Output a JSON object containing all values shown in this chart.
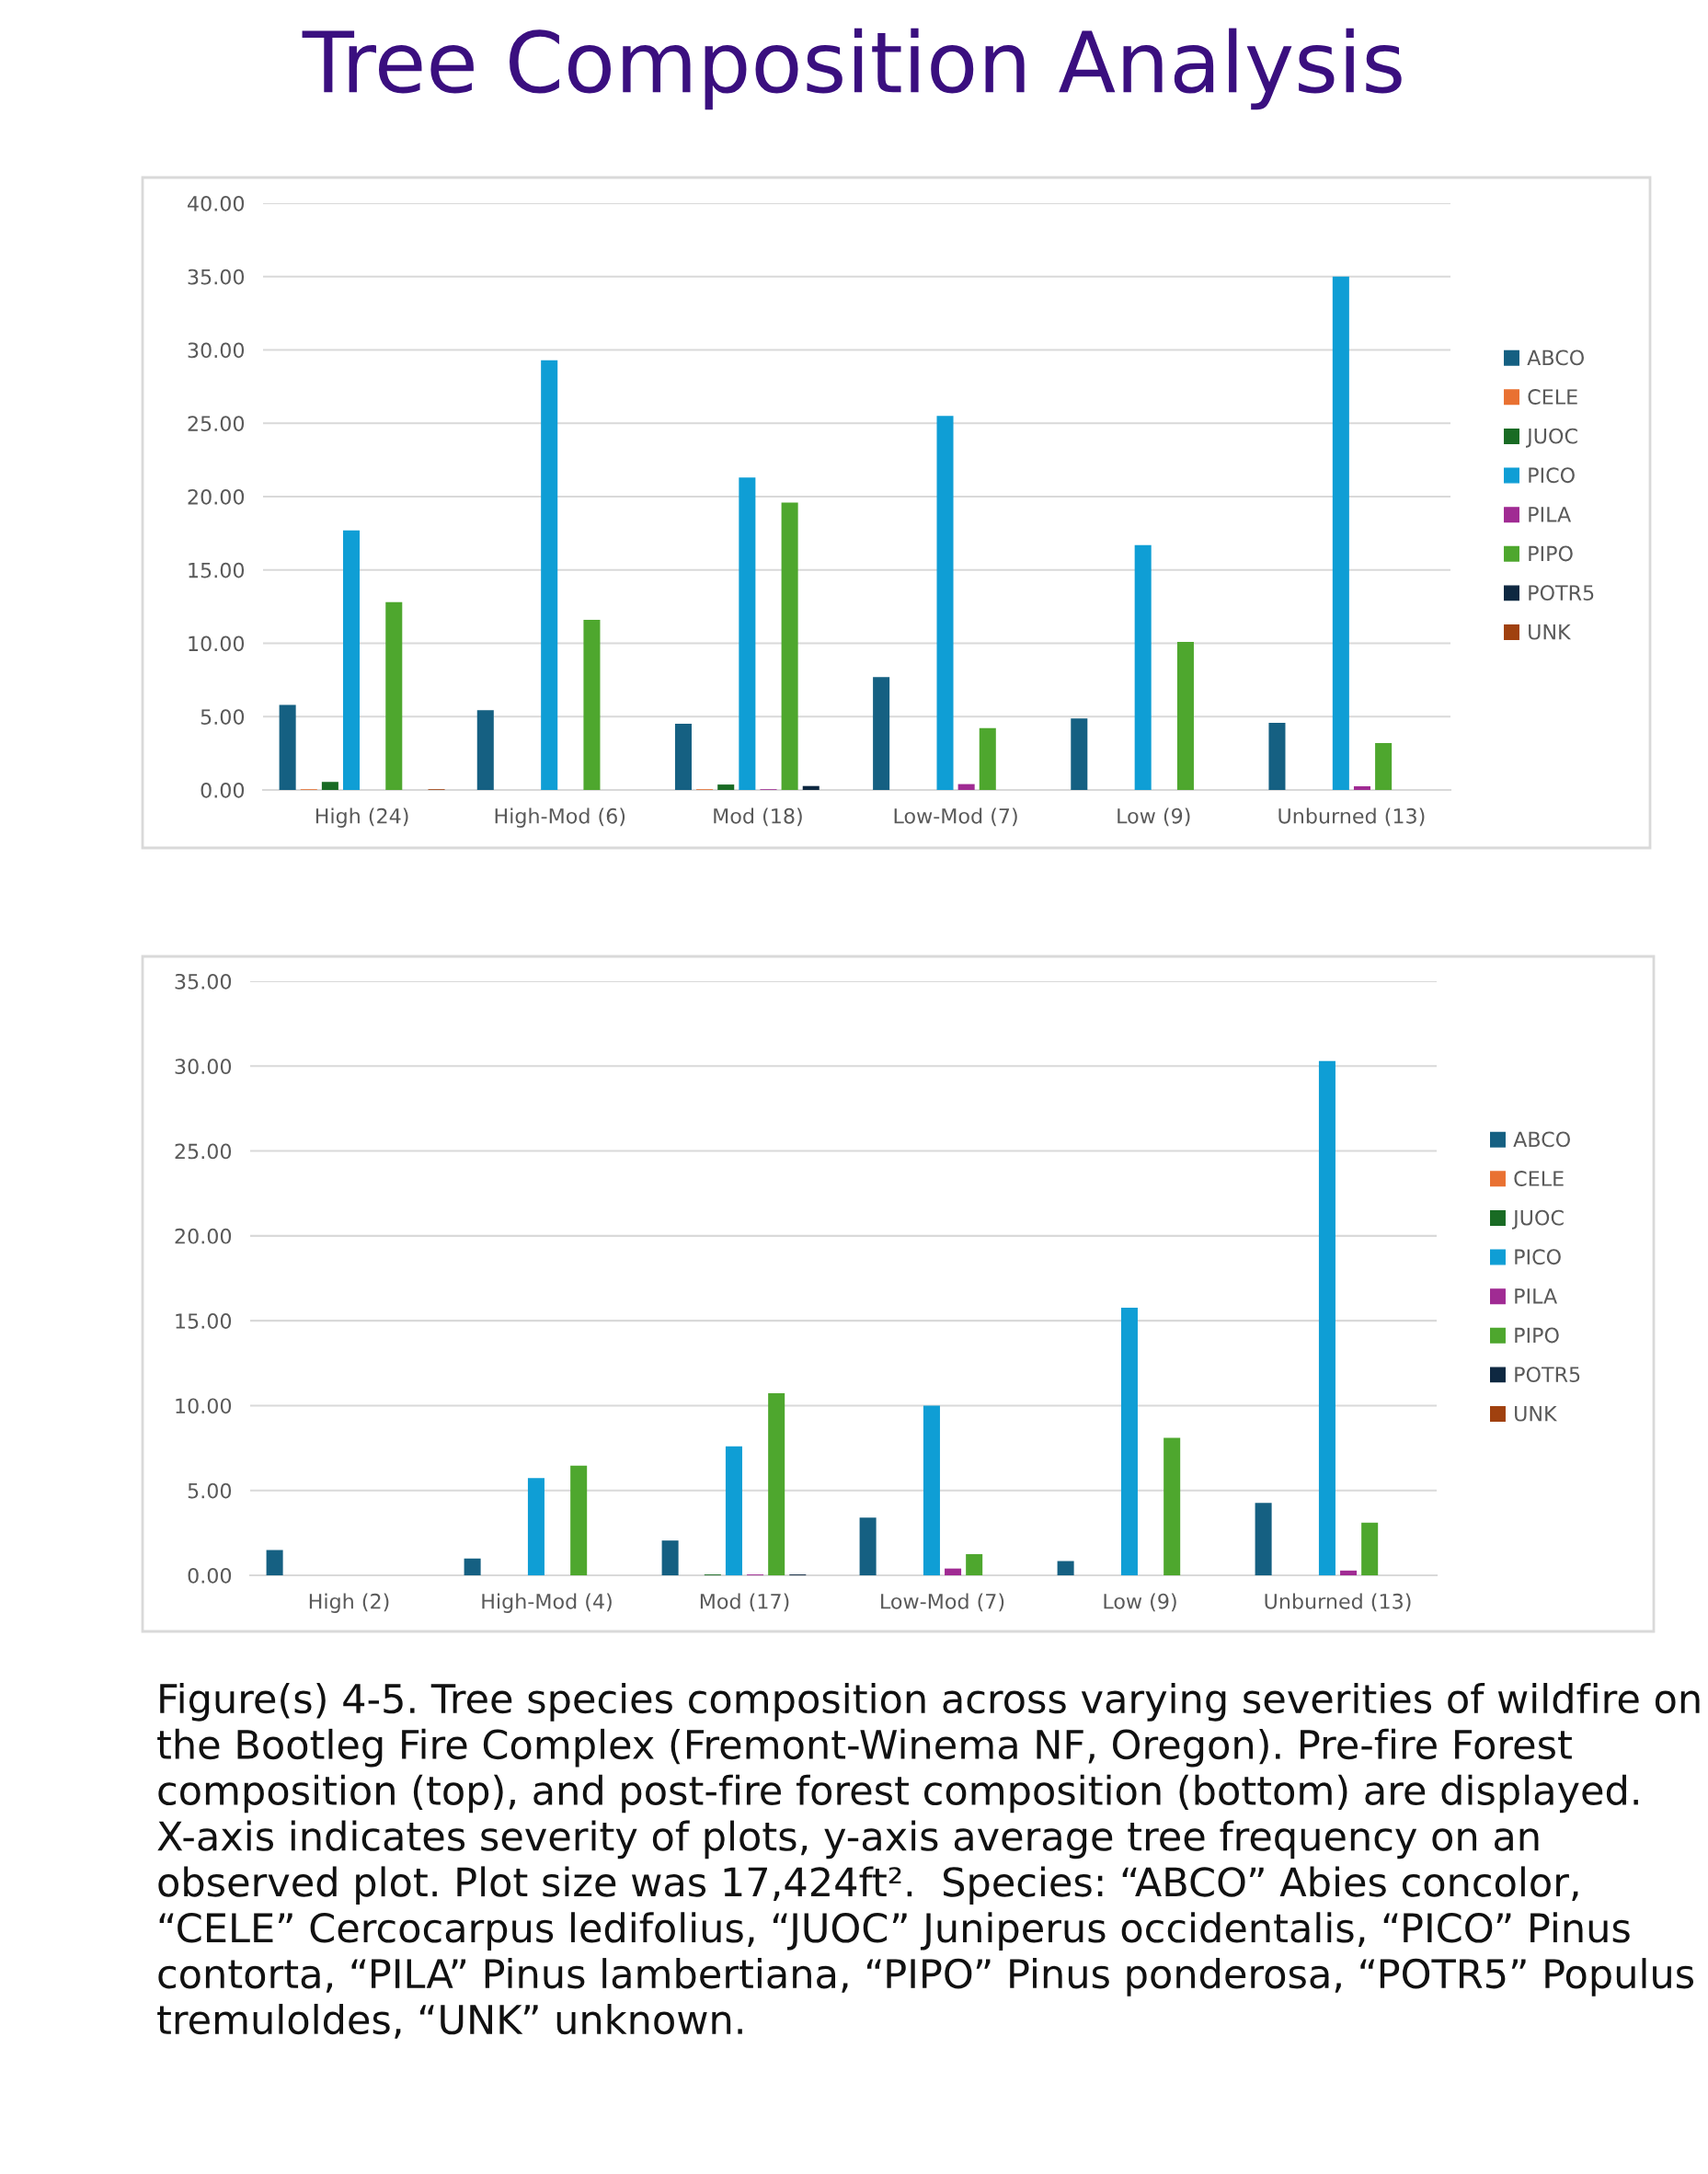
{
  "chart_data": [
    {
      "type": "bar",
      "title": "Tree Composition Analysis",
      "categories": [
        "High (24)",
        "High-Mod (6)",
        "Mod (18)",
        "Low-Mod (7)",
        "Low (9)",
        "Unburned (13)"
      ],
      "series": [
        {
          "name": "ABCO",
          "color": "#156082",
          "values": [
            5.8,
            5.44,
            4.52,
            7.69,
            4.87,
            4.58
          ]
        },
        {
          "name": "CELE",
          "color": "#e97132",
          "values": [
            0.05,
            0,
            0.05,
            0,
            0,
            0
          ]
        },
        {
          "name": "JUOC",
          "color": "#196b24",
          "values": [
            0.55,
            0,
            0.37,
            0,
            0,
            0
          ]
        },
        {
          "name": "PICO",
          "color": "#0f9ed5",
          "values": [
            17.7,
            29.3,
            21.3,
            25.5,
            16.7,
            35.0
          ]
        },
        {
          "name": "PILA",
          "color": "#a02b93",
          "values": [
            0,
            0,
            0.05,
            0.4,
            0,
            0.25
          ]
        },
        {
          "name": "PIPO",
          "color": "#4ea72e",
          "values": [
            12.8,
            11.6,
            19.6,
            4.22,
            10.1,
            3.2
          ]
        },
        {
          "name": "POTR5",
          "color": "#0e2841",
          "values": [
            0,
            0,
            0.27,
            0,
            0,
            0
          ]
        },
        {
          "name": "UNK",
          "color": "#a0410f",
          "values": [
            0.05,
            0,
            0,
            0,
            0,
            0
          ]
        }
      ],
      "ylim": [
        0,
        40
      ],
      "yticks": [
        {
          "value": 0,
          "label": "0.00"
        },
        {
          "value": 5,
          "label": "5.00"
        },
        {
          "value": 10,
          "label": "10.00"
        },
        {
          "value": 15,
          "label": "15.00"
        },
        {
          "value": 20,
          "label": "20.00"
        },
        {
          "value": 25,
          "label": "25.00"
        },
        {
          "value": 30,
          "label": "30.00"
        },
        {
          "value": 35,
          "label": "35.00"
        },
        {
          "value": 40,
          "label": "40.00"
        }
      ],
      "grid": "y",
      "legend": "right"
    },
    {
      "type": "bar",
      "categories": [
        "High (2)",
        "High-Mod (4)",
        "Mod (17)",
        "Low-Mod (7)",
        "Low (9)",
        "Unburned (13)"
      ],
      "series": [
        {
          "name": "ABCO",
          "color": "#156082",
          "values": [
            1.49,
            0.99,
            2.05,
            3.4,
            0.84,
            4.27
          ]
        },
        {
          "name": "CELE",
          "color": "#e97132",
          "values": [
            0,
            0,
            0,
            0,
            0,
            0
          ]
        },
        {
          "name": "JUOC",
          "color": "#196b24",
          "values": [
            0,
            0,
            0.05,
            0,
            0,
            0
          ]
        },
        {
          "name": "PICO",
          "color": "#0f9ed5",
          "values": [
            0,
            5.73,
            7.6,
            10.0,
            15.76,
            30.3
          ]
        },
        {
          "name": "PILA",
          "color": "#a02b93",
          "values": [
            0,
            0,
            0.05,
            0.4,
            0,
            0.28
          ]
        },
        {
          "name": "PIPO",
          "color": "#4ea72e",
          "values": [
            0,
            6.46,
            10.73,
            1.25,
            8.1,
            3.1
          ]
        },
        {
          "name": "POTR5",
          "color": "#0e2841",
          "values": [
            0,
            0,
            0.05,
            0,
            0,
            0
          ]
        },
        {
          "name": "UNK",
          "color": "#a0410f",
          "values": [
            0,
            0,
            0,
            0,
            0,
            0
          ]
        }
      ],
      "ylim": [
        0,
        35
      ],
      "yticks": [
        {
          "value": 0,
          "label": "0.00"
        },
        {
          "value": 5,
          "label": "5.00"
        },
        {
          "value": 10,
          "label": "10.00"
        },
        {
          "value": 15,
          "label": "15.00"
        },
        {
          "value": 20,
          "label": "20.00"
        },
        {
          "value": 25,
          "label": "25.00"
        },
        {
          "value": 30,
          "label": "30.00"
        },
        {
          "value": 35,
          "label": "35.00"
        }
      ],
      "grid": "y",
      "legend": "right",
      "annotations": [
        "Figure(s) 4-5. Tree species composition across varying severities of wildfire on the Bootleg Fire Complex (Fremont-Winema NF, Oregon). Pre-fire Forest composition (top), and post-fire forest composition (bottom) are displayed. X-axis indicates severity of plots, y-axis average tree frequency on an observed plot. Plot size was 17,424ft².  Species: “ABCO” Abies concolor, “CELE” Cercocarpus ledifolius, “JUOC” Juniperus occidentalis, “PICO” Pinus contorta, “PILA” Pinus lambertiana, “PIPO” Pinus ponderosa, “POTR5” Populus tremuloldes, “UNK” unknown."
      ]
    }
  ]
}
